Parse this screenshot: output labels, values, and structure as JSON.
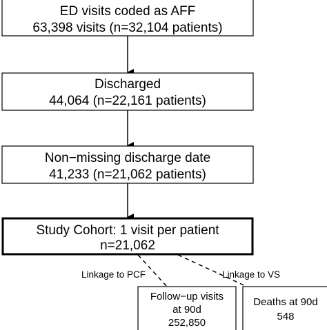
{
  "boxes": [
    {
      "line1": "ED visits coded as AFF",
      "line2": "63,398 visits (n=32,104 patients)"
    },
    {
      "line1": "Discharged",
      "line2": "44,064 (n=22,161 patients)"
    },
    {
      "line1": "Non−missing discharge date",
      "line2": "41,233 (n=21,062 patients)"
    },
    {
      "line1": "Study Cohort: 1 visit per patient",
      "line2": "n=21,062"
    }
  ],
  "branches": {
    "pcf": {
      "link_label": "Linkage to PCF",
      "line1": "Follow−up visits",
      "line2": "at 90d",
      "line3": "252,850"
    },
    "vs": {
      "link_label": "Linkage to VS",
      "line1": "Deaths at 90d",
      "line2": "548"
    }
  }
}
